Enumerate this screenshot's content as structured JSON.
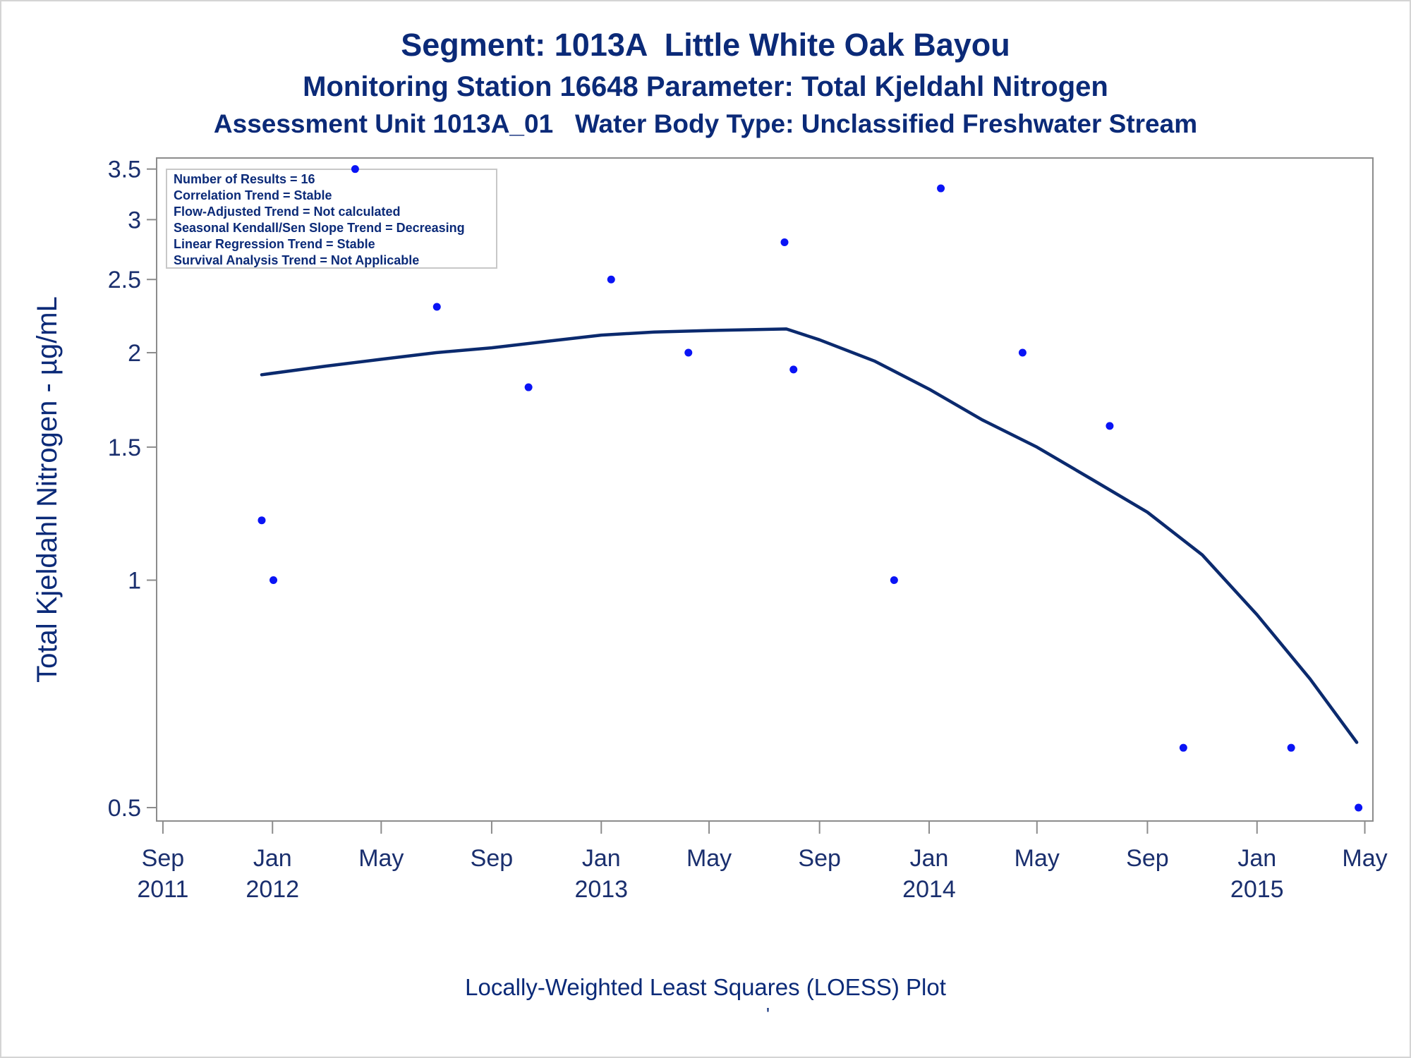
{
  "titles": {
    "line1": "Segment: 1013A  Little White Oak Bayou",
    "line2": "Monitoring Station 16648 Parameter: Total Kjeldahl Nitrogen",
    "line3": "Assessment Unit 1013A_01   Water Body Type: Unclassified Freshwater Stream"
  },
  "footer": {
    "label": "Locally-Weighted Least Squares (LOESS) Plot",
    "mark": "'"
  },
  "legend_box": {
    "lines": [
      "Number of Results = 16",
      "Correlation Trend = Stable",
      "Flow-Adjusted Trend = Not calculated",
      "Seasonal Kendall/Sen Slope Trend = Decreasing",
      "Linear Regression Trend = Stable",
      "Survival Analysis Trend = Not Applicable"
    ]
  },
  "colors": {
    "points": "#0a14f5",
    "loess_line": "#0b2a6e",
    "text": "#0b2a78",
    "axis": "#8c8c8c"
  },
  "chart_data": {
    "type": "scatter",
    "ylabel": "Total Kjeldahl Nitrogen -  µg/mL",
    "xlabel": "",
    "y_scale": "log",
    "ylim": [
      0.48,
      3.62
    ],
    "y_ticks": [
      {
        "value": 0.5,
        "label": "0.5"
      },
      {
        "value": 1,
        "label": "1"
      },
      {
        "value": 1.5,
        "label": "1.5"
      },
      {
        "value": 2,
        "label": "2"
      },
      {
        "value": 2.5,
        "label": "2.5"
      },
      {
        "value": 3,
        "label": "3"
      },
      {
        "value": 3.5,
        "label": "3.5"
      }
    ],
    "xlim": [
      "2011-08-25",
      "2015-05-10"
    ],
    "x_ticks": [
      {
        "date": "2011-09-01",
        "label1": "Sep",
        "label2": "2011"
      },
      {
        "date": "2012-01-01",
        "label1": "Jan",
        "label2": "2012"
      },
      {
        "date": "2012-05-01",
        "label1": "May",
        "label2": ""
      },
      {
        "date": "2012-09-01",
        "label1": "Sep",
        "label2": ""
      },
      {
        "date": "2013-01-01",
        "label1": "Jan",
        "label2": "2013"
      },
      {
        "date": "2013-05-01",
        "label1": "May",
        "label2": ""
      },
      {
        "date": "2013-09-01",
        "label1": "Sep",
        "label2": ""
      },
      {
        "date": "2014-01-01",
        "label1": "Jan",
        "label2": "2014"
      },
      {
        "date": "2014-05-01",
        "label1": "May",
        "label2": ""
      },
      {
        "date": "2014-09-01",
        "label1": "Sep",
        "label2": ""
      },
      {
        "date": "2015-01-01",
        "label1": "Jan",
        "label2": "2015"
      },
      {
        "date": "2015-05-01",
        "label1": "May",
        "label2": ""
      }
    ],
    "series": [
      {
        "points": [
          {
            "x": "2011-12-20",
            "y": 1.2
          },
          {
            "x": "2012-01-02",
            "y": 1.0
          },
          {
            "x": "2012-04-02",
            "y": 3.5
          },
          {
            "x": "2012-07-02",
            "y": 2.3
          },
          {
            "x": "2012-10-12",
            "y": 1.8
          },
          {
            "x": "2013-01-12",
            "y": 2.5
          },
          {
            "x": "2013-04-08",
            "y": 2.0
          },
          {
            "x": "2013-07-24",
            "y": 2.8
          },
          {
            "x": "2013-08-03",
            "y": 1.9
          },
          {
            "x": "2013-11-23",
            "y": 1.0
          },
          {
            "x": "2014-01-14",
            "y": 3.3
          },
          {
            "x": "2014-04-15",
            "y": 2.0
          },
          {
            "x": "2014-07-21",
            "y": 1.6
          },
          {
            "x": "2014-10-11",
            "y": 0.6
          },
          {
            "x": "2015-02-08",
            "y": 0.6
          },
          {
            "x": "2015-04-24",
            "y": 0.5
          }
        ]
      },
      {
        "type": "line",
        "points": [
          {
            "x": "2011-12-20",
            "y": 1.87
          },
          {
            "x": "2012-03-01",
            "y": 1.92
          },
          {
            "x": "2012-05-01",
            "y": 1.96
          },
          {
            "x": "2012-07-01",
            "y": 2.0
          },
          {
            "x": "2012-09-01",
            "y": 2.03
          },
          {
            "x": "2012-11-01",
            "y": 2.07
          },
          {
            "x": "2013-01-01",
            "y": 2.11
          },
          {
            "x": "2013-03-01",
            "y": 2.13
          },
          {
            "x": "2013-05-01",
            "y": 2.14
          },
          {
            "x": "2013-07-26",
            "y": 2.15
          },
          {
            "x": "2013-09-01",
            "y": 2.08
          },
          {
            "x": "2013-11-01",
            "y": 1.95
          },
          {
            "x": "2014-01-01",
            "y": 1.79
          },
          {
            "x": "2014-03-01",
            "y": 1.63
          },
          {
            "x": "2014-05-01",
            "y": 1.5
          },
          {
            "x": "2014-07-01",
            "y": 1.36
          },
          {
            "x": "2014-09-01",
            "y": 1.23
          },
          {
            "x": "2014-11-01",
            "y": 1.08
          },
          {
            "x": "2015-01-01",
            "y": 0.9
          },
          {
            "x": "2015-03-01",
            "y": 0.74
          },
          {
            "x": "2015-04-22",
            "y": 0.61
          }
        ]
      }
    ]
  }
}
